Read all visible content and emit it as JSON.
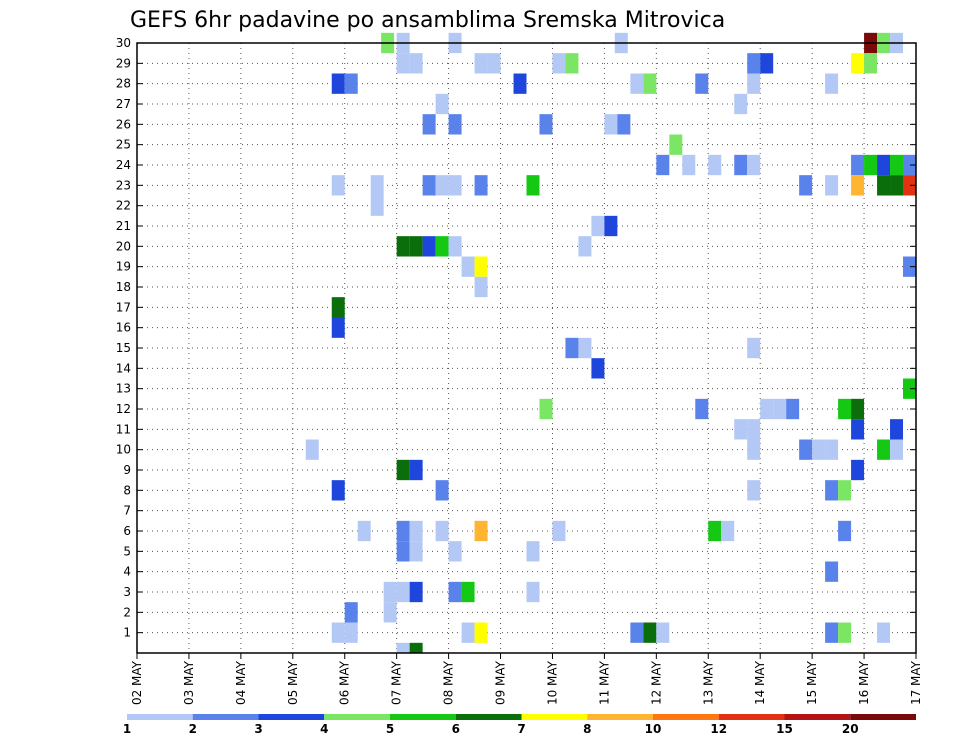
{
  "chart_data": {
    "type": "heatmap",
    "title": "GEFS 6hr padavine po ansamblima Sremska Mitrovica",
    "xlabel": "",
    "ylabel": "",
    "x_tick_labels": [
      "02 MAY",
      "03 MAY",
      "04 MAY",
      "05 MAY",
      "06 MAY",
      "07 MAY",
      "08 MAY",
      "09 MAY",
      "10 MAY",
      "11 MAY",
      "12 MAY",
      "13 MAY",
      "14 MAY",
      "15 MAY",
      "16 MAY",
      "17 MAY"
    ],
    "y_range": [
      0,
      30
    ],
    "y_ticks": [
      1,
      2,
      3,
      4,
      5,
      6,
      7,
      8,
      9,
      10,
      11,
      12,
      13,
      14,
      15,
      16,
      17,
      18,
      19,
      20,
      21,
      22,
      23,
      24,
      25,
      26,
      27,
      28,
      29,
      30
    ],
    "steps_per_day": 4,
    "grid": true,
    "legend": {
      "placement": "bottom",
      "labels": [
        "1",
        "2",
        "3",
        "4",
        "5",
        "6",
        "7",
        "8",
        "10",
        "12",
        "15",
        "20"
      ],
      "colors": [
        "#b4c8f5",
        "#5a82eb",
        "#1e46dc",
        "#7ae664",
        "#14c814",
        "#0a6e0a",
        "#ffff00",
        "#ffb432",
        "#ff7814",
        "#e13214",
        "#b41414",
        "#780a0a"
      ]
    },
    "cells": [
      {
        "m": 30,
        "x": 4.7,
        "c": 3
      },
      {
        "m": 30,
        "x": 5.0,
        "c": 0
      },
      {
        "m": 30,
        "x": 6.0,
        "c": 0
      },
      {
        "m": 30,
        "x": 9.2,
        "c": 0
      },
      {
        "m": 30,
        "x": 14.0,
        "c": 11
      },
      {
        "m": 30,
        "x": 14.25,
        "c": 3
      },
      {
        "m": 30,
        "x": 14.5,
        "c": 0
      },
      {
        "m": 29,
        "x": 5.0,
        "c": 0
      },
      {
        "m": 29,
        "x": 5.25,
        "c": 0
      },
      {
        "m": 29,
        "x": 6.5,
        "c": 0
      },
      {
        "m": 29,
        "x": 6.75,
        "c": 0
      },
      {
        "m": 29,
        "x": 8.0,
        "c": 0
      },
      {
        "m": 29,
        "x": 8.25,
        "c": 3
      },
      {
        "m": 29,
        "x": 11.75,
        "c": 1
      },
      {
        "m": 29,
        "x": 12.0,
        "c": 2
      },
      {
        "m": 29,
        "x": 13.75,
        "c": 6
      },
      {
        "m": 29,
        "x": 14.0,
        "c": 3
      },
      {
        "m": 28,
        "x": 3.75,
        "c": 2
      },
      {
        "m": 28,
        "x": 4.0,
        "c": 1
      },
      {
        "m": 28,
        "x": 7.25,
        "c": 2
      },
      {
        "m": 28,
        "x": 9.5,
        "c": 0
      },
      {
        "m": 28,
        "x": 9.75,
        "c": 3
      },
      {
        "m": 28,
        "x": 10.75,
        "c": 1
      },
      {
        "m": 28,
        "x": 11.75,
        "c": 0
      },
      {
        "m": 28,
        "x": 13.25,
        "c": 0
      },
      {
        "m": 27,
        "x": 5.75,
        "c": 0
      },
      {
        "m": 27,
        "x": 11.5,
        "c": 0
      },
      {
        "m": 26,
        "x": 5.5,
        "c": 1
      },
      {
        "m": 26,
        "x": 6.0,
        "c": 1
      },
      {
        "m": 26,
        "x": 7.75,
        "c": 1
      },
      {
        "m": 26,
        "x": 9.0,
        "c": 0
      },
      {
        "m": 26,
        "x": 9.25,
        "c": 1
      },
      {
        "m": 25,
        "x": 10.25,
        "c": 3
      },
      {
        "m": 24,
        "x": 10.0,
        "c": 1
      },
      {
        "m": 24,
        "x": 10.5,
        "c": 0
      },
      {
        "m": 24,
        "x": 11.0,
        "c": 0
      },
      {
        "m": 24,
        "x": 11.5,
        "c": 1
      },
      {
        "m": 24,
        "x": 11.75,
        "c": 0
      },
      {
        "m": 24,
        "x": 13.75,
        "c": 1
      },
      {
        "m": 24,
        "x": 14.0,
        "c": 4
      },
      {
        "m": 24,
        "x": 14.25,
        "c": 2
      },
      {
        "m": 24,
        "x": 14.5,
        "c": 4
      },
      {
        "m": 24,
        "x": 14.75,
        "c": 1
      },
      {
        "m": 23,
        "x": 3.75,
        "c": 0
      },
      {
        "m": 23,
        "x": 4.5,
        "c": 0
      },
      {
        "m": 23,
        "x": 5.5,
        "c": 1
      },
      {
        "m": 23,
        "x": 5.75,
        "c": 0
      },
      {
        "m": 23,
        "x": 6.0,
        "c": 0
      },
      {
        "m": 23,
        "x": 6.5,
        "c": 1
      },
      {
        "m": 23,
        "x": 7.5,
        "c": 4
      },
      {
        "m": 23,
        "x": 12.75,
        "c": 1
      },
      {
        "m": 23,
        "x": 13.25,
        "c": 0
      },
      {
        "m": 23,
        "x": 13.75,
        "c": 7
      },
      {
        "m": 23,
        "x": 14.25,
        "c": 5
      },
      {
        "m": 23,
        "x": 14.5,
        "c": 5
      },
      {
        "m": 23,
        "x": 14.75,
        "c": 9
      },
      {
        "m": 22,
        "x": 4.5,
        "c": 0
      },
      {
        "m": 21,
        "x": 8.75,
        "c": 0
      },
      {
        "m": 21,
        "x": 9.0,
        "c": 2
      },
      {
        "m": 20,
        "x": 5.0,
        "c": 5
      },
      {
        "m": 20,
        "x": 5.25,
        "c": 5
      },
      {
        "m": 20,
        "x": 5.5,
        "c": 2
      },
      {
        "m": 20,
        "x": 5.75,
        "c": 4
      },
      {
        "m": 20,
        "x": 6.0,
        "c": 0
      },
      {
        "m": 20,
        "x": 8.5,
        "c": 0
      },
      {
        "m": 19,
        "x": 6.25,
        "c": 0
      },
      {
        "m": 19,
        "x": 6.5,
        "c": 6
      },
      {
        "m": 19,
        "x": 14.75,
        "c": 1
      },
      {
        "m": 18,
        "x": 6.5,
        "c": 0
      },
      {
        "m": 17,
        "x": 3.75,
        "c": 5
      },
      {
        "m": 16,
        "x": 3.75,
        "c": 2
      },
      {
        "m": 15,
        "x": 8.25,
        "c": 1
      },
      {
        "m": 15,
        "x": 8.5,
        "c": 0
      },
      {
        "m": 15,
        "x": 11.75,
        "c": 0
      },
      {
        "m": 14,
        "x": 8.75,
        "c": 2
      },
      {
        "m": 13,
        "x": 14.75,
        "c": 4
      },
      {
        "m": 12,
        "x": 7.75,
        "c": 3
      },
      {
        "m": 12,
        "x": 10.75,
        "c": 1
      },
      {
        "m": 12,
        "x": 12.0,
        "c": 0
      },
      {
        "m": 12,
        "x": 12.25,
        "c": 0
      },
      {
        "m": 12,
        "x": 12.5,
        "c": 1
      },
      {
        "m": 12,
        "x": 13.5,
        "c": 4
      },
      {
        "m": 12,
        "x": 13.75,
        "c": 5
      },
      {
        "m": 11,
        "x": 11.5,
        "c": 0
      },
      {
        "m": 11,
        "x": 11.75,
        "c": 0
      },
      {
        "m": 11,
        "x": 13.75,
        "c": 2
      },
      {
        "m": 11,
        "x": 14.5,
        "c": 2
      },
      {
        "m": 10,
        "x": 3.25,
        "c": 0
      },
      {
        "m": 10,
        "x": 11.75,
        "c": 0
      },
      {
        "m": 10,
        "x": 12.75,
        "c": 1
      },
      {
        "m": 10,
        "x": 13.0,
        "c": 0
      },
      {
        "m": 10,
        "x": 13.25,
        "c": 0
      },
      {
        "m": 10,
        "x": 14.25,
        "c": 4
      },
      {
        "m": 10,
        "x": 14.5,
        "c": 0
      },
      {
        "m": 9,
        "x": 5.0,
        "c": 5
      },
      {
        "m": 9,
        "x": 5.25,
        "c": 2
      },
      {
        "m": 9,
        "x": 13.75,
        "c": 2
      },
      {
        "m": 8,
        "x": 3.75,
        "c": 2
      },
      {
        "m": 8,
        "x": 5.75,
        "c": 1
      },
      {
        "m": 8,
        "x": 11.75,
        "c": 0
      },
      {
        "m": 8,
        "x": 13.25,
        "c": 1
      },
      {
        "m": 8,
        "x": 13.5,
        "c": 3
      },
      {
        "m": 6,
        "x": 4.25,
        "c": 0
      },
      {
        "m": 6,
        "x": 5.0,
        "c": 1
      },
      {
        "m": 6,
        "x": 5.25,
        "c": 0
      },
      {
        "m": 6,
        "x": 5.75,
        "c": 0
      },
      {
        "m": 6,
        "x": 6.5,
        "c": 7
      },
      {
        "m": 6,
        "x": 8.0,
        "c": 0
      },
      {
        "m": 6,
        "x": 11.0,
        "c": 4
      },
      {
        "m": 6,
        "x": 11.25,
        "c": 0
      },
      {
        "m": 6,
        "x": 13.5,
        "c": 1
      },
      {
        "m": 5,
        "x": 5.0,
        "c": 1
      },
      {
        "m": 5,
        "x": 5.25,
        "c": 0
      },
      {
        "m": 5,
        "x": 6.0,
        "c": 0
      },
      {
        "m": 5,
        "x": 7.5,
        "c": 0
      },
      {
        "m": 4,
        "x": 13.25,
        "c": 1
      },
      {
        "m": 3,
        "x": 4.75,
        "c": 0
      },
      {
        "m": 3,
        "x": 5.0,
        "c": 0
      },
      {
        "m": 3,
        "x": 5.25,
        "c": 2
      },
      {
        "m": 3,
        "x": 6.0,
        "c": 1
      },
      {
        "m": 3,
        "x": 6.25,
        "c": 4
      },
      {
        "m": 3,
        "x": 7.5,
        "c": 0
      },
      {
        "m": 2,
        "x": 4.0,
        "c": 1
      },
      {
        "m": 2,
        "x": 4.75,
        "c": 0
      },
      {
        "m": 1,
        "x": 3.75,
        "c": 0
      },
      {
        "m": 1,
        "x": 4.0,
        "c": 0
      },
      {
        "m": 1,
        "x": 6.25,
        "c": 0
      },
      {
        "m": 1,
        "x": 6.5,
        "c": 6
      },
      {
        "m": 1,
        "x": 9.5,
        "c": 1
      },
      {
        "m": 1,
        "x": 9.75,
        "c": 5
      },
      {
        "m": 1,
        "x": 10.0,
        "c": 0
      },
      {
        "m": 1,
        "x": 13.25,
        "c": 1
      },
      {
        "m": 1,
        "x": 13.5,
        "c": 3
      },
      {
        "m": 1,
        "x": 14.25,
        "c": 0
      },
      {
        "m": 0,
        "x": 5.0,
        "c": 0
      },
      {
        "m": 0,
        "x": 5.25,
        "c": 5
      }
    ]
  }
}
